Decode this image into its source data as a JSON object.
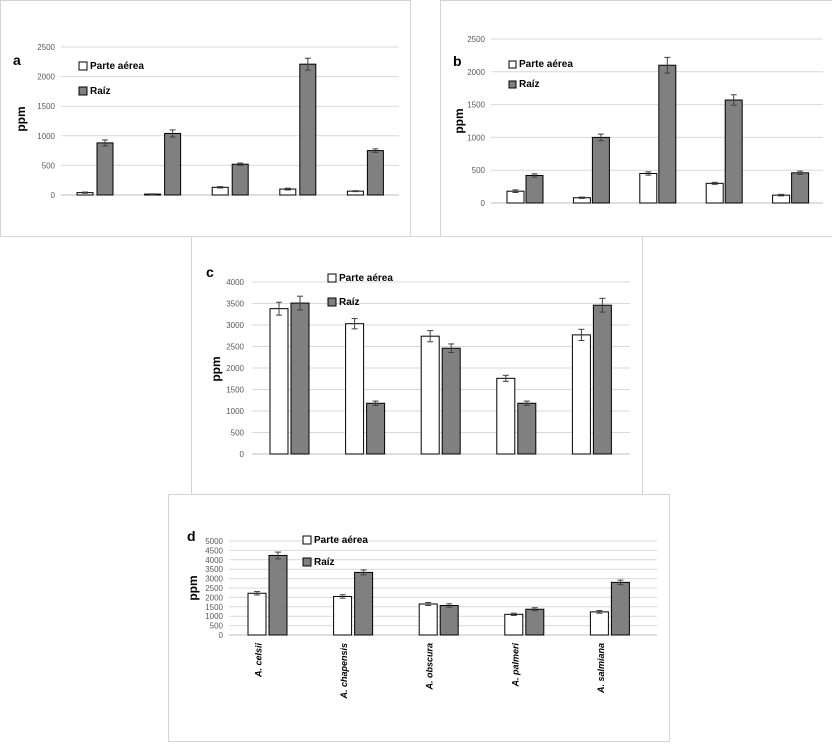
{
  "legend": {
    "shoot": "Parte aérea",
    "root": "Raíz"
  },
  "colors": {
    "shoot": "#ffffff",
    "root": "#808080",
    "outline": "#000000",
    "grid": "#d9d9d9"
  },
  "chart_data": [
    {
      "type": "bar",
      "panel": "a",
      "ylabel": "ppm",
      "ylim": [
        0,
        2500
      ],
      "yticks": [
        "0",
        "500",
        "1000",
        "1500",
        "2000",
        "2500"
      ],
      "categories": [
        "",
        "",
        "",
        "",
        ""
      ],
      "series": [
        {
          "name": "Parte aérea",
          "values": [
            40,
            15,
            130,
            100,
            65
          ],
          "errors": [
            10,
            5,
            12,
            15,
            8
          ]
        },
        {
          "name": "Raíz",
          "values": [
            880,
            1040,
            520,
            2210,
            750
          ],
          "errors": [
            50,
            60,
            20,
            100,
            30
          ]
        }
      ]
    },
    {
      "type": "bar",
      "panel": "b",
      "ylabel": "ppm",
      "ylim": [
        0,
        2500
      ],
      "yticks": [
        "0",
        "500",
        "1000",
        "1500",
        "2000",
        "2500"
      ],
      "categories": [
        "",
        "",
        "",
        "",
        ""
      ],
      "series": [
        {
          "name": "Parte aérea",
          "values": [
            180,
            80,
            450,
            300,
            120
          ],
          "errors": [
            20,
            10,
            25,
            15,
            12
          ]
        },
        {
          "name": "Raíz",
          "values": [
            420,
            1000,
            2100,
            1570,
            460
          ],
          "errors": [
            25,
            50,
            120,
            80,
            25
          ]
        }
      ]
    },
    {
      "type": "bar",
      "panel": "c",
      "ylabel": "ppm",
      "ylim": [
        0,
        4000
      ],
      "yticks": [
        "0",
        "500",
        "1000",
        "1500",
        "2000",
        "2500",
        "3000",
        "3500",
        "4000"
      ],
      "categories": [
        "",
        "",
        "",
        "",
        ""
      ],
      "series": [
        {
          "name": "Parte aérea",
          "values": [
            3380,
            3030,
            2740,
            1760,
            2770
          ],
          "errors": [
            150,
            120,
            130,
            70,
            130
          ]
        },
        {
          "name": "Raíz",
          "values": [
            3510,
            1180,
            2460,
            1180,
            3460
          ],
          "errors": [
            160,
            50,
            100,
            50,
            160
          ]
        }
      ]
    },
    {
      "type": "bar",
      "panel": "d",
      "ylabel": "ppm",
      "ylim": [
        0,
        5000
      ],
      "yticks": [
        "0",
        "500",
        "1000",
        "1500",
        "2000",
        "2500",
        "3000",
        "3500",
        "4000",
        "4500",
        "5000"
      ],
      "categories": [
        "A. celsii",
        "A. chapensis",
        "A. obscura",
        "A. palmeri",
        "A. salmiana"
      ],
      "series": [
        {
          "name": "Parte aérea",
          "values": [
            2220,
            2050,
            1650,
            1100,
            1230
          ],
          "errors": [
            90,
            90,
            80,
            60,
            70
          ]
        },
        {
          "name": "Raíz",
          "values": [
            4230,
            3330,
            1570,
            1370,
            2800
          ],
          "errors": [
            180,
            130,
            90,
            80,
            120
          ]
        }
      ]
    }
  ]
}
